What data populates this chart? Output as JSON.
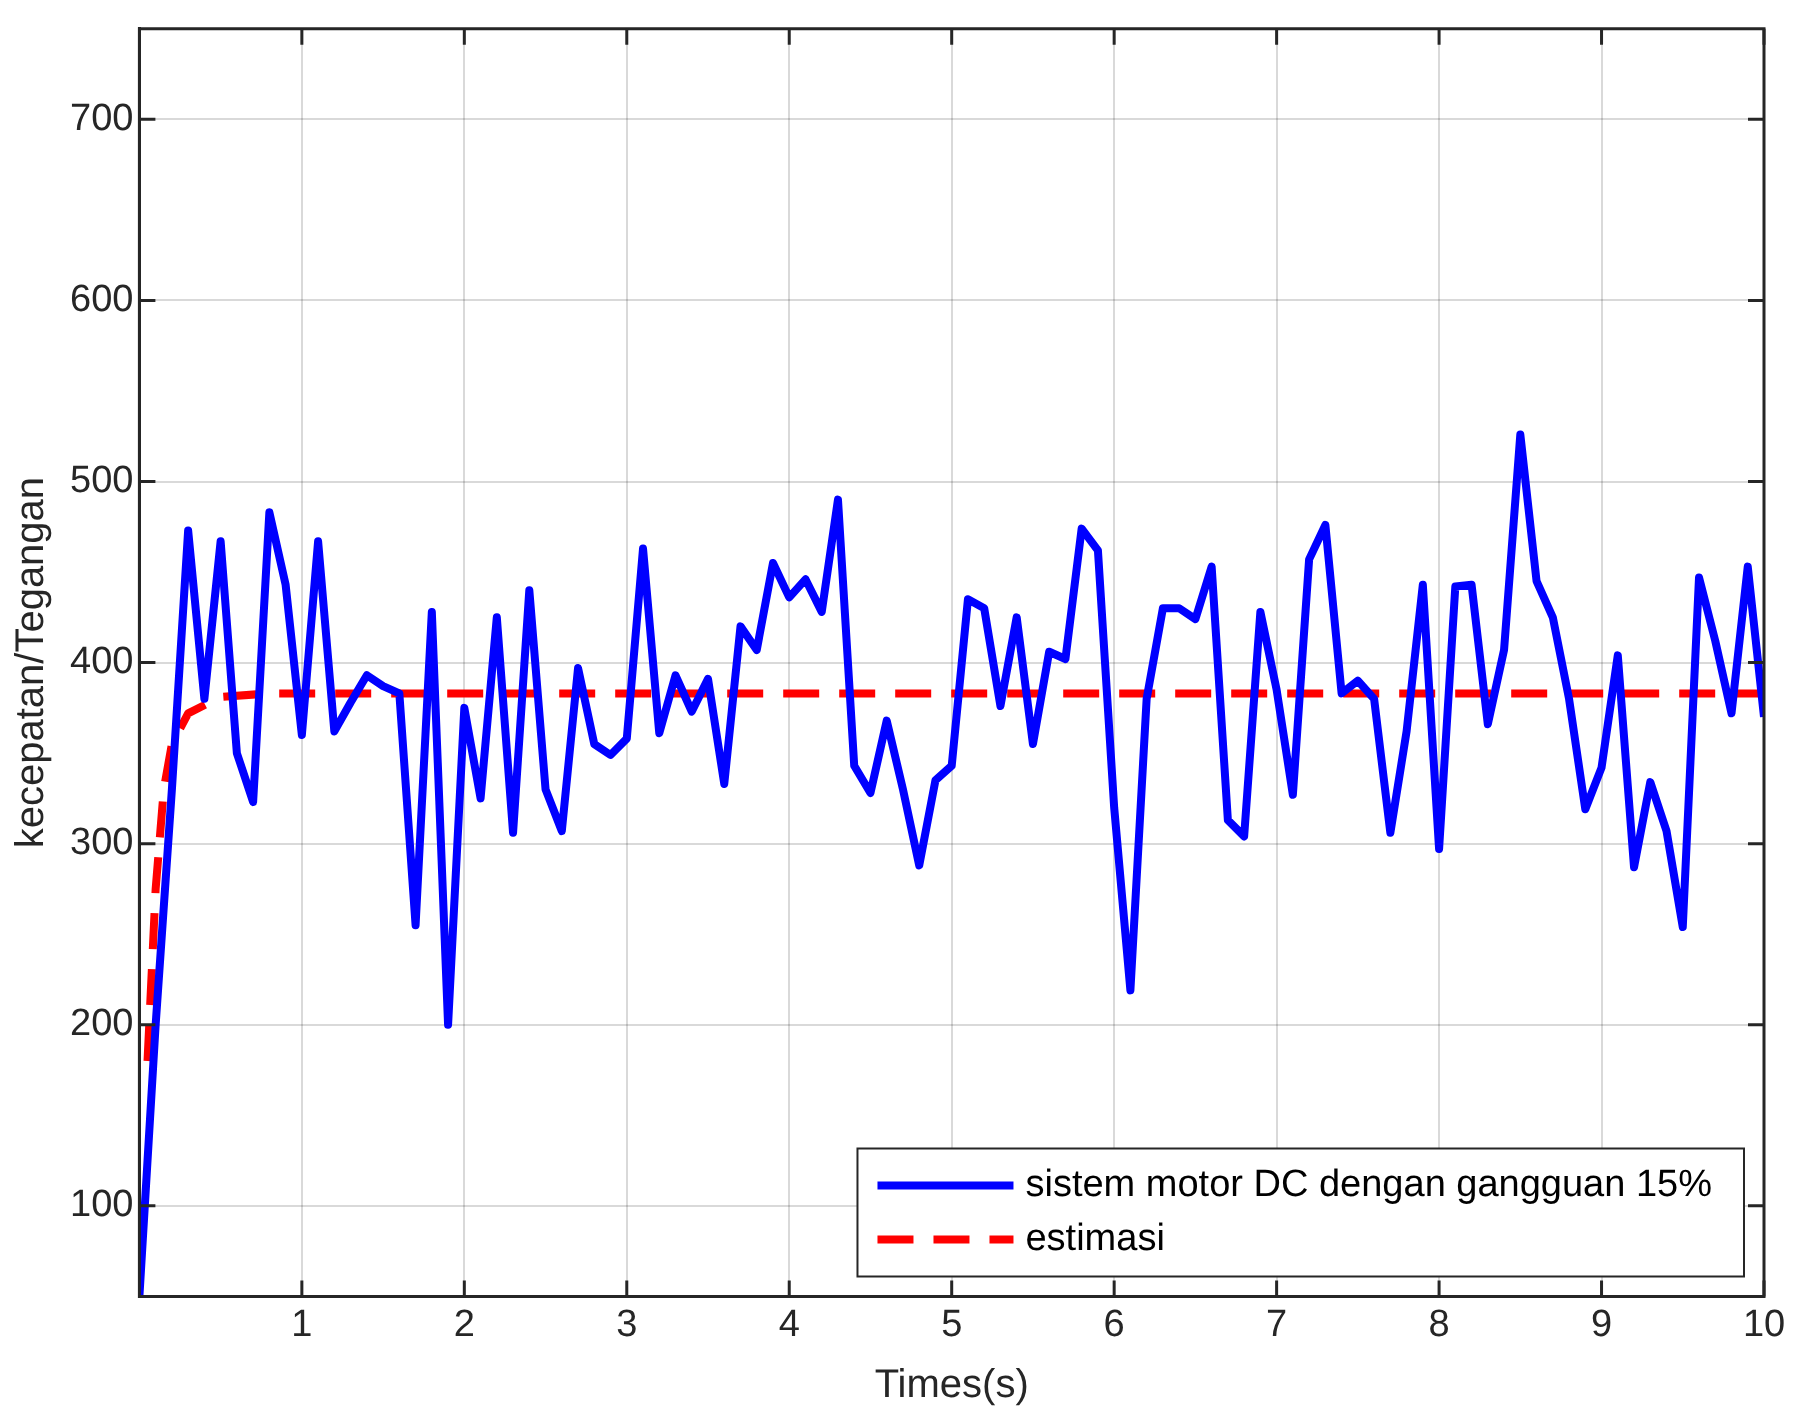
{
  "chart_data": {
    "type": "line",
    "xlabel": "Times(s)",
    "ylabel": "kecepatan/Tegangan",
    "xlim": [
      0,
      10
    ],
    "xticks": [
      1,
      2,
      3,
      4,
      5,
      6,
      7,
      8,
      9,
      10
    ],
    "ylim": [
      50,
      750
    ],
    "yticks": [
      100,
      200,
      300,
      400,
      500,
      600,
      700
    ],
    "grid": true,
    "legend": "bottom right",
    "marker": "none",
    "series": [
      {
        "name": "sistem motor DC dengan gangguan 15%",
        "color": "#0000ff",
        "line_style": "solid",
        "x": [
          0,
          0.1,
          0.2,
          0.3,
          0.4,
          0.5,
          0.6,
          0.7,
          0.8,
          0.9,
          1,
          1.1,
          1.2,
          1.3,
          1.4,
          1.5,
          1.6,
          1.7,
          1.8,
          1.9,
          2,
          2.1,
          2.2,
          2.3,
          2.4,
          2.5,
          2.6,
          2.7,
          2.8,
          2.9,
          3,
          3.1,
          3.2,
          3.3,
          3.4,
          3.5,
          3.6,
          3.7,
          3.8,
          3.9,
          4,
          4.1,
          4.2,
          4.3,
          4.4,
          4.5,
          4.6,
          4.7,
          4.8,
          4.9,
          5,
          5.1,
          5.2,
          5.3,
          5.4,
          5.5,
          5.6,
          5.7,
          5.8,
          5.9,
          6,
          6.1,
          6.2,
          6.3,
          6.4,
          6.5,
          6.6,
          6.7,
          6.8,
          6.9,
          7,
          7.1,
          7.2,
          7.3,
          7.4,
          7.5,
          7.6,
          7.7,
          7.8,
          7.9,
          8,
          8.1,
          8.2,
          8.3,
          8.4,
          8.5,
          8.6,
          8.7,
          8.8,
          8.9,
          9,
          9.1,
          9.2,
          9.3,
          9.4,
          9.5,
          9.6,
          9.7,
          9.8,
          9.9,
          10
        ],
        "values": [
          50,
          200,
          330,
          473,
          380,
          467,
          350,
          323,
          483,
          443,
          360,
          467,
          362,
          378,
          393,
          387,
          383,
          255,
          428,
          200,
          375,
          325,
          425,
          306,
          440,
          330,
          307,
          397,
          355,
          349,
          358,
          463,
          361,
          393,
          373,
          391,
          333,
          420,
          407,
          455,
          436,
          446,
          428,
          490,
          343,
          328,
          368,
          330,
          288,
          335,
          343,
          435,
          430,
          376,
          425,
          355,
          406,
          402,
          474,
          462,
          320,
          219,
          380,
          430,
          430,
          424,
          453,
          313,
          304,
          428,
          385,
          327,
          457,
          476,
          383,
          390,
          380,
          306,
          362,
          443,
          297,
          442,
          443,
          366,
          407,
          526,
          445,
          425,
          380,
          319,
          342,
          404,
          287,
          334,
          307,
          254,
          447,
          412,
          372,
          453,
          370
        ]
      },
      {
        "name": "estimasi",
        "color": "#ff0000",
        "line_style": "dashed",
        "x": [
          0.05,
          0.1,
          0.15,
          0.2,
          0.3,
          0.5,
          0.8,
          10
        ],
        "values": [
          180,
          275,
          330,
          355,
          372,
          381,
          383,
          383
        ]
      }
    ]
  }
}
